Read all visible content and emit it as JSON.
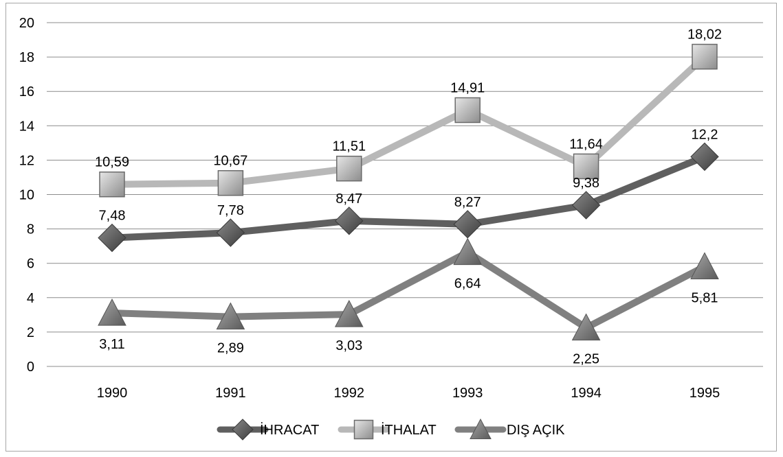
{
  "chart_data": {
    "type": "line",
    "title": "",
    "xlabel": "",
    "ylabel": "",
    "categories": [
      "1990",
      "1991",
      "1992",
      "1993",
      "1994",
      "1995"
    ],
    "ylim": [
      0,
      20
    ],
    "yticks": [
      0,
      2,
      4,
      6,
      8,
      10,
      12,
      14,
      16,
      18,
      20
    ],
    "grid": true,
    "legend_position": "bottom",
    "series": [
      {
        "name": "İHRACAT",
        "values": [
          7.48,
          7.78,
          8.47,
          8.27,
          9.38,
          12.2
        ],
        "labels": [
          "7,48",
          "7,78",
          "8,47",
          "8,27",
          "9,38",
          "12,2"
        ],
        "marker": "diamond",
        "color": "#5f5f5f",
        "label_position": "above"
      },
      {
        "name": "İTHALAT",
        "values": [
          10.59,
          10.67,
          11.51,
          14.91,
          11.64,
          18.02
        ],
        "labels": [
          "10,59",
          "10,67",
          "11,51",
          "14,91",
          "11,64",
          "18,02"
        ],
        "marker": "square",
        "color": "#b8b8b8",
        "label_position": "above"
      },
      {
        "name": "DIŞ AÇIK",
        "values": [
          3.11,
          2.89,
          3.03,
          6.64,
          2.25,
          5.81
        ],
        "labels": [
          "3,11",
          "2,89",
          "3,03",
          "6,64",
          "2,25",
          "5,81"
        ],
        "marker": "triangle",
        "color": "#808080",
        "label_position": "below"
      }
    ]
  }
}
